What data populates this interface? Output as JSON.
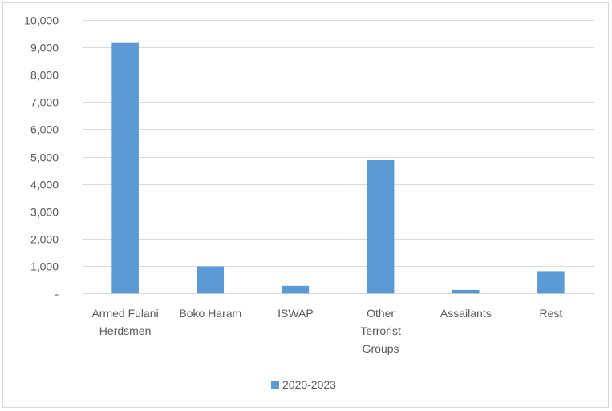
{
  "chart_data": {
    "type": "bar",
    "categories": [
      "Armed Fulani Herdsmen",
      "Boko Haram",
      "ISWAP",
      "Other Terrorist Groups",
      "Assailants",
      "Rest"
    ],
    "category_lines": [
      [
        "Armed Fulani",
        "Herdsmen"
      ],
      [
        "Boko Haram"
      ],
      [
        "ISWAP"
      ],
      [
        "Other",
        "Terrorist",
        "Groups"
      ],
      [
        "Assailants"
      ],
      [
        "Rest"
      ]
    ],
    "series": [
      {
        "name": "2020-2023",
        "values": [
          9150,
          970,
          260,
          4860,
          110,
          800
        ]
      }
    ],
    "ylim": [
      0,
      10000
    ],
    "yticks": [
      0,
      1000,
      2000,
      3000,
      4000,
      5000,
      6000,
      7000,
      8000,
      9000,
      10000
    ],
    "ytick_labels": [
      "-",
      "1,000",
      "2,000",
      "3,000",
      "4,000",
      "5,000",
      "6,000",
      "7,000",
      "8,000",
      "9,000",
      "10,000"
    ],
    "grid": true,
    "legend_position": "bottom",
    "colors": {
      "bar": "#5b9bd5",
      "bar_edge": "#4f8fcb",
      "grid": "#d9d9d9",
      "text": "#595959",
      "border": "#d9d9d9"
    }
  }
}
